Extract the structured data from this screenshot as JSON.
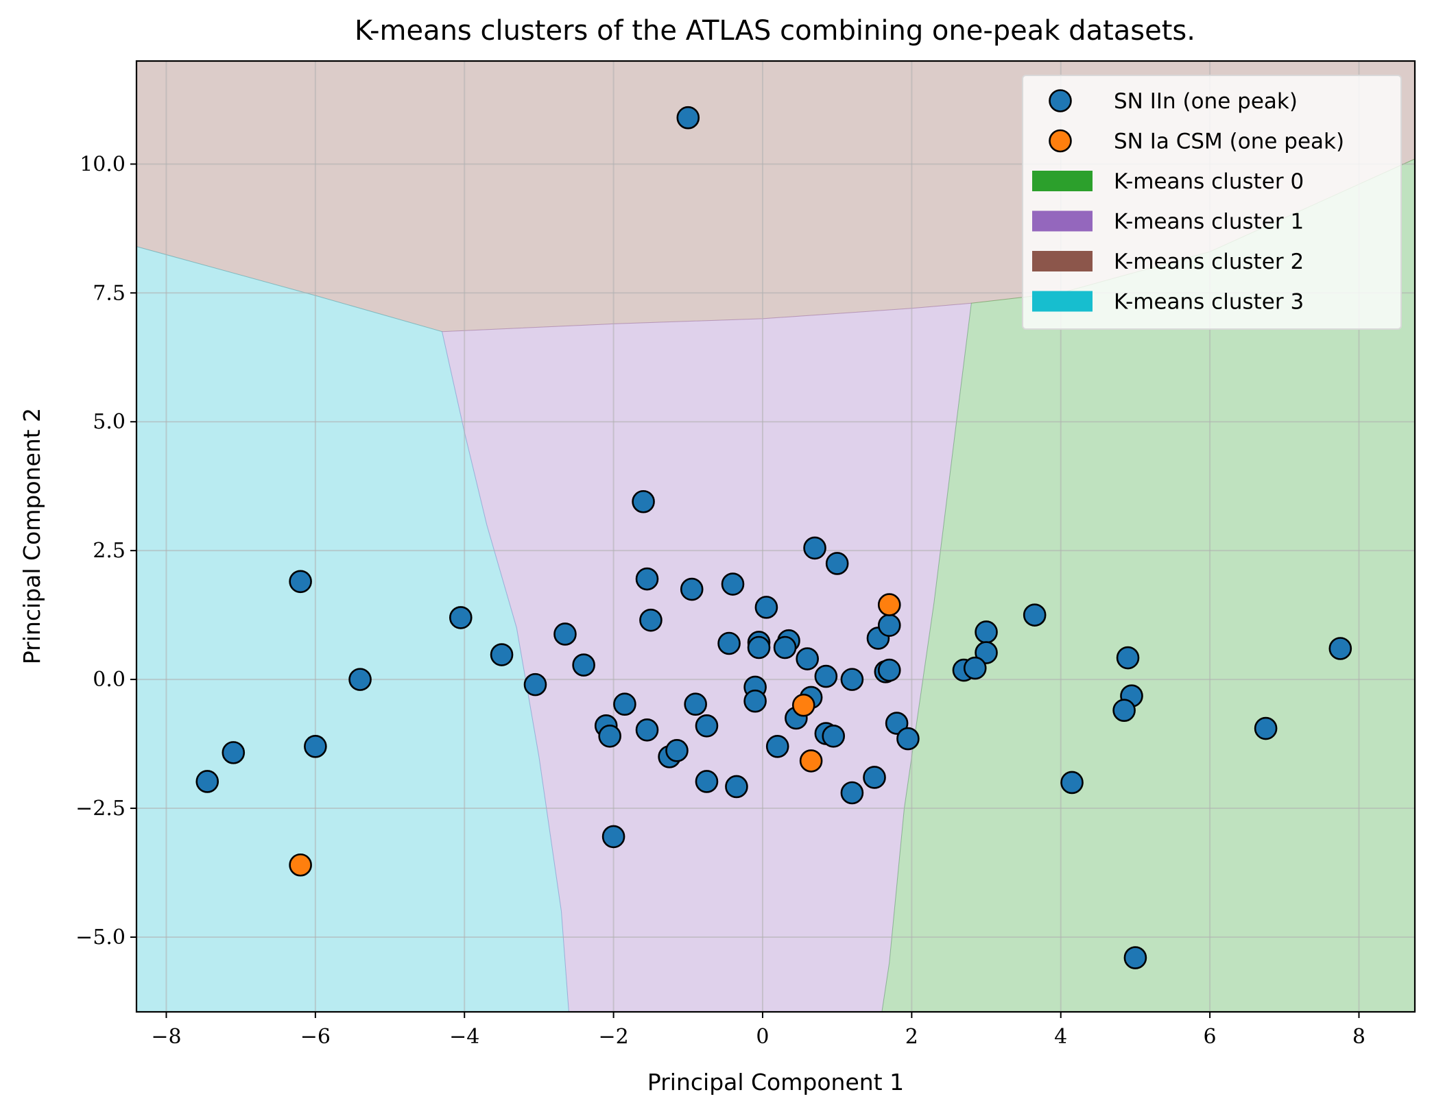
{
  "chart_data": {
    "type": "scatter",
    "title": "K-means clusters of the ATLAS combining one-peak datasets.",
    "xlabel": "Principal Component 1",
    "ylabel": "Principal Component 2",
    "xlim": [
      -8.4,
      8.75
    ],
    "ylim": [
      -6.45,
      12.0
    ],
    "xticks": [
      -8,
      -6,
      -4,
      -2,
      0,
      2,
      4,
      6,
      8
    ],
    "xtick_labels": [
      "−8",
      "−6",
      "−4",
      "−2",
      "0",
      "2",
      "4",
      "6",
      "8"
    ],
    "yticks": [
      -5.0,
      -2.5,
      0.0,
      2.5,
      5.0,
      7.5,
      10.0
    ],
    "ytick_labels": [
      "−5.0",
      "−2.5",
      "0.0",
      "2.5",
      "5.0",
      "7.5",
      "10.0"
    ],
    "grid": true,
    "legend_position": "top-right",
    "series": [
      {
        "name": "SN IIn (one peak)",
        "color": "#1f77b4",
        "points": [
          [
            -1.0,
            10.9
          ],
          [
            -1.6,
            3.45
          ],
          [
            0.7,
            2.55
          ],
          [
            1.0,
            2.25
          ],
          [
            -6.2,
            1.9
          ],
          [
            -1.55,
            1.95
          ],
          [
            -0.95,
            1.75
          ],
          [
            -0.4,
            1.85
          ],
          [
            0.05,
            1.4
          ],
          [
            -4.05,
            1.2
          ],
          [
            -1.5,
            1.15
          ],
          [
            3.65,
            1.25
          ],
          [
            -2.65,
            0.88
          ],
          [
            -0.45,
            0.7
          ],
          [
            -0.05,
            0.72
          ],
          [
            0.35,
            0.75
          ],
          [
            0.3,
            0.62
          ],
          [
            -0.05,
            0.62
          ],
          [
            1.55,
            0.8
          ],
          [
            1.7,
            1.05
          ],
          [
            3.0,
            0.92
          ],
          [
            7.75,
            0.6
          ],
          [
            -3.5,
            0.48
          ],
          [
            -2.4,
            0.28
          ],
          [
            0.6,
            0.4
          ],
          [
            3.0,
            0.52
          ],
          [
            4.9,
            0.42
          ],
          [
            2.7,
            0.18
          ],
          [
            2.85,
            0.22
          ],
          [
            1.65,
            0.15
          ],
          [
            1.7,
            0.18
          ],
          [
            -5.4,
            0.0
          ],
          [
            0.85,
            0.06
          ],
          [
            1.2,
            0.0
          ],
          [
            -3.05,
            -0.1
          ],
          [
            -0.1,
            -0.15
          ],
          [
            0.65,
            -0.35
          ],
          [
            -0.1,
            -0.42
          ],
          [
            -1.85,
            -0.48
          ],
          [
            -0.9,
            -0.48
          ],
          [
            4.95,
            -0.32
          ],
          [
            4.85,
            -0.6
          ],
          [
            -2.1,
            -0.9
          ],
          [
            -2.05,
            -1.1
          ],
          [
            -1.55,
            -0.98
          ],
          [
            -0.75,
            -0.9
          ],
          [
            0.45,
            -0.75
          ],
          [
            0.85,
            -1.05
          ],
          [
            0.95,
            -1.1
          ],
          [
            1.8,
            -0.85
          ],
          [
            1.95,
            -1.15
          ],
          [
            6.75,
            -0.95
          ],
          [
            -7.1,
            -1.42
          ],
          [
            -6.0,
            -1.3
          ],
          [
            0.2,
            -1.3
          ],
          [
            -1.25,
            -1.5
          ],
          [
            -1.15,
            -1.38
          ],
          [
            -7.45,
            -1.98
          ],
          [
            -0.75,
            -1.98
          ],
          [
            -0.35,
            -2.08
          ],
          [
            1.2,
            -2.2
          ],
          [
            1.5,
            -1.9
          ],
          [
            4.15,
            -2.0
          ],
          [
            -2.0,
            -3.05
          ],
          [
            5.0,
            -5.4
          ]
        ]
      },
      {
        "name": "SN Ia CSM (one peak)",
        "color": "#ff7f0e",
        "points": [
          [
            1.7,
            1.45
          ],
          [
            0.55,
            -0.5
          ],
          [
            0.65,
            -1.58
          ],
          [
            -6.2,
            -3.6
          ]
        ]
      }
    ],
    "regions": [
      {
        "name": "K-means cluster 0",
        "color": "#2ca02c"
      },
      {
        "name": "K-means cluster 1",
        "color": "#9467bd"
      },
      {
        "name": "K-means cluster 2",
        "color": "#8c564b"
      },
      {
        "name": "K-means cluster 3",
        "color": "#17becf"
      }
    ],
    "boundaries": {
      "cluster2_lower_edge": [
        [
          -8.4,
          8.4
        ],
        [
          -6.0,
          7.45
        ],
        [
          -4.3,
          6.75
        ],
        [
          -2.0,
          6.9
        ],
        [
          0.0,
          7.0
        ],
        [
          2.0,
          7.2
        ],
        [
          2.8,
          7.3
        ],
        [
          4.0,
          7.5
        ],
        [
          6.0,
          8.3
        ],
        [
          8.75,
          10.1
        ]
      ],
      "cluster3_cluster1": [
        [
          -4.3,
          6.75
        ],
        [
          -4.0,
          4.8
        ],
        [
          -3.7,
          3.0
        ],
        [
          -3.3,
          1.0
        ],
        [
          -3.0,
          -1.5
        ],
        [
          -2.7,
          -4.5
        ],
        [
          -2.6,
          -6.45
        ]
      ],
      "cluster1_cluster0": [
        [
          2.8,
          7.3
        ],
        [
          2.6,
          5.0
        ],
        [
          2.3,
          1.5
        ],
        [
          1.9,
          -2.5
        ],
        [
          1.7,
          -5.5
        ],
        [
          1.6,
          -6.45
        ]
      ]
    }
  }
}
